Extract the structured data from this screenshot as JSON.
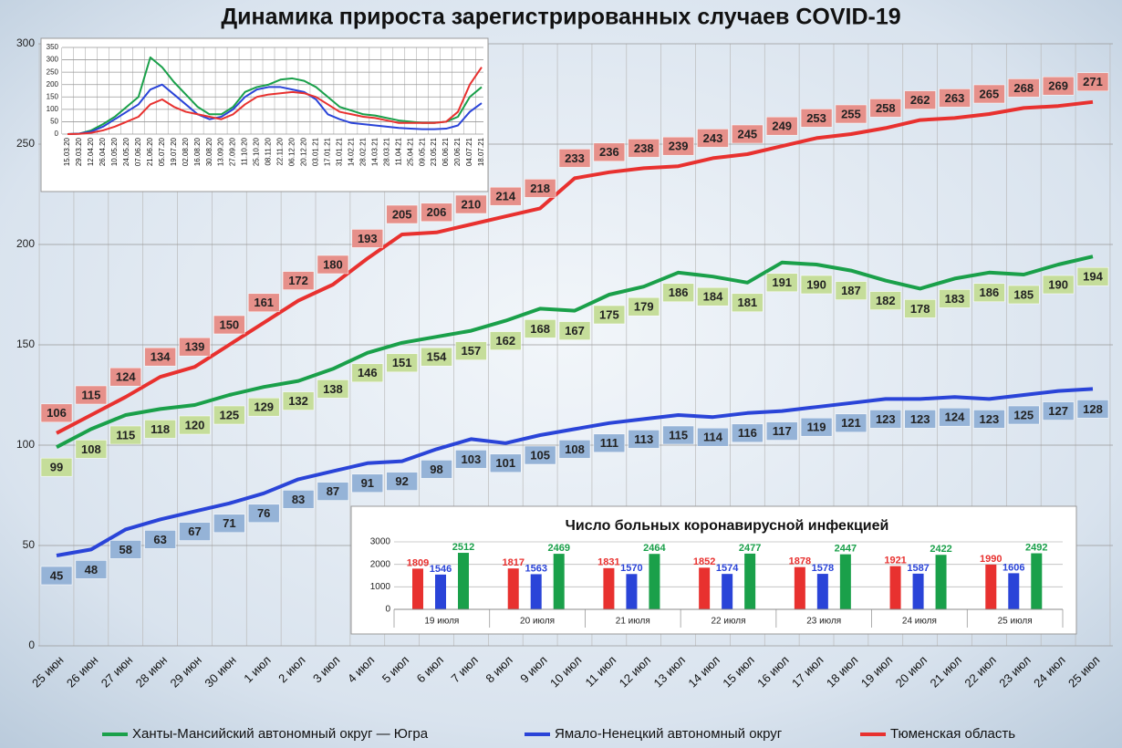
{
  "chart_data": [
    {
      "type": "line",
      "title": "Динамика прироста зарегистрированных случаев COVID-19",
      "categories": [
        "25 июн",
        "26 июн",
        "27 июн",
        "28 июн",
        "29 июн",
        "30 июн",
        "1 июл",
        "2 июл",
        "3 июл",
        "4 июл",
        "5 июл",
        "6 июл",
        "7 июл",
        "8 июл",
        "9 июл",
        "10 июл",
        "11 июл",
        "12 июл",
        "13 июл",
        "14 июл",
        "15 июл",
        "16 июл",
        "17 июл",
        "18 июл",
        "19 июл",
        "20 июл",
        "21 июл",
        "22 июл",
        "23 июл",
        "24 июл",
        "25 июл"
      ],
      "series": [
        {
          "name": "Ханты-Мансийский автономный округ — Югра",
          "color": "#1aa04a",
          "values": [
            99,
            108,
            115,
            118,
            120,
            125,
            129,
            132,
            138,
            146,
            151,
            154,
            157,
            162,
            168,
            167,
            175,
            179,
            186,
            184,
            181,
            191,
            190,
            187,
            182,
            178,
            183,
            186,
            185,
            190,
            194
          ]
        },
        {
          "name": "Ямало-Ненецкий автономный округ",
          "color": "#2a44d8",
          "values": [
            45,
            48,
            58,
            63,
            67,
            71,
            76,
            83,
            87,
            91,
            92,
            98,
            103,
            101,
            105,
            108,
            111,
            113,
            115,
            114,
            116,
            117,
            119,
            121,
            123,
            123,
            124,
            123,
            125,
            127,
            128
          ]
        },
        {
          "name": "Тюменская область",
          "color": "#e8312f",
          "values": [
            106,
            115,
            124,
            134,
            139,
            150,
            161,
            172,
            180,
            193,
            205,
            206,
            210,
            214,
            218,
            233,
            236,
            238,
            239,
            243,
            245,
            249,
            253,
            255,
            258,
            262,
            263,
            265,
            268,
            269,
            271
          ]
        }
      ],
      "ylim": [
        0,
        300
      ],
      "yticks": [
        0,
        50,
        100,
        150,
        200,
        250,
        300
      ],
      "grid": true
    },
    {
      "type": "line",
      "categories": [
        "15.03.20",
        "29.03.20",
        "12.04.20",
        "26.04.20",
        "10.05.20",
        "24.05.20",
        "07.06.20",
        "21.06.20",
        "05.07.20",
        "19.07.20",
        "02.08.20",
        "16.08.20",
        "30.08.20",
        "13.09.20",
        "27.09.20",
        "11.10.20",
        "25.10.20",
        "08.11.20",
        "22.11.20",
        "06.12.20",
        "20.12.20",
        "03.01.21",
        "17.01.21",
        "31.01.21",
        "14.02.21",
        "28.02.21",
        "14.03.21",
        "28.03.21",
        "11.04.21",
        "25.04.21",
        "09.05.21",
        "23.05.21",
        "06.06.21",
        "20.06.21",
        "04.07.21",
        "18.07.21"
      ],
      "series": [
        {
          "color": "#1aa04a",
          "values": [
            0,
            2,
            15,
            40,
            70,
            110,
            150,
            310,
            270,
            210,
            160,
            110,
            80,
            80,
            110,
            170,
            190,
            200,
            220,
            225,
            215,
            190,
            150,
            110,
            95,
            80,
            75,
            65,
            55,
            50,
            45,
            45,
            50,
            70,
            150,
            190
          ]
        },
        {
          "color": "#2a44d8",
          "values": [
            0,
            2,
            10,
            30,
            60,
            90,
            120,
            180,
            200,
            160,
            120,
            80,
            60,
            70,
            100,
            150,
            180,
            190,
            190,
            180,
            170,
            140,
            80,
            60,
            45,
            40,
            35,
            30,
            25,
            22,
            20,
            20,
            22,
            35,
            90,
            125
          ]
        },
        {
          "color": "#e8312f",
          "values": [
            0,
            1,
            5,
            15,
            30,
            50,
            70,
            120,
            140,
            110,
            90,
            80,
            70,
            60,
            80,
            120,
            150,
            160,
            165,
            170,
            165,
            150,
            120,
            90,
            80,
            70,
            65,
            55,
            45,
            45,
            45,
            45,
            50,
            90,
            200,
            270
          ]
        }
      ],
      "ylim": [
        0,
        350
      ],
      "yticks": [
        0,
        50,
        100,
        150,
        200,
        250,
        300,
        350
      ],
      "grid": true
    },
    {
      "type": "bar",
      "title": "Число больных коронавирусной инфекцией",
      "categories": [
        "19 июля",
        "20 июля",
        "21 июля",
        "22 июля",
        "23 июля",
        "24 июля",
        "25 июля"
      ],
      "series": [
        {
          "color": "#e8312f",
          "values": [
            1809,
            1817,
            1831,
            1852,
            1878,
            1921,
            1990
          ]
        },
        {
          "color": "#2a44d8",
          "values": [
            1546,
            1563,
            1570,
            1574,
            1578,
            1587,
            1606
          ]
        },
        {
          "color": "#1aa04a",
          "values": [
            2512,
            2469,
            2464,
            2477,
            2447,
            2422,
            2492
          ]
        }
      ],
      "ylim": [
        0,
        3000
      ],
      "yticks": [
        0,
        1000,
        2000,
        3000
      ],
      "grid": true
    }
  ]
}
